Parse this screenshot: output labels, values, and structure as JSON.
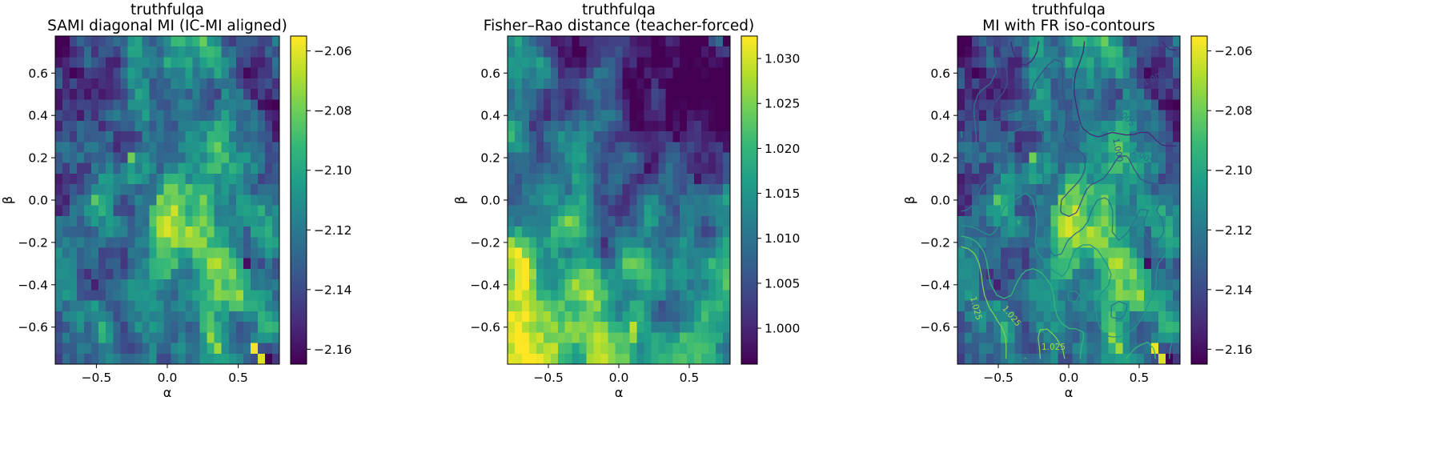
{
  "chart_data": [
    {
      "type": "heatmap",
      "title": "truthfulqa",
      "subtitle": "SAMI diagonal MI (IC-MI aligned)",
      "xlabel": "α",
      "ylabel": "β",
      "xlim": [
        -0.79,
        0.79
      ],
      "ylim": [
        -0.775,
        0.775
      ],
      "x_ticks": [
        "−0.5",
        "0.0",
        "0.5"
      ],
      "y_ticks": [
        "0.6",
        "0.4",
        "0.2",
        "0.0",
        "−0.2",
        "−0.4",
        "−0.6"
      ],
      "grid": "31 x 31",
      "colormap": "viridis",
      "colorbar_range": [
        -2.165,
        -2.055
      ],
      "colorbar_ticks": [
        "−2.06",
        "−2.08",
        "−2.10",
        "−2.12",
        "−2.14",
        "−2.16"
      ],
      "field": "mi"
    },
    {
      "type": "heatmap",
      "title": "truthfulqa",
      "subtitle": "Fisher–Rao distance (teacher-forced)",
      "xlabel": "α",
      "ylabel": "β",
      "xlim": [
        -0.79,
        0.79
      ],
      "ylim": [
        -0.775,
        0.775
      ],
      "x_ticks": [
        "−0.5",
        "0.0",
        "0.5"
      ],
      "y_ticks": [
        "0.6",
        "0.4",
        "0.2",
        "0.0",
        "−0.2",
        "−0.4",
        "−0.6"
      ],
      "grid": "31 x 31",
      "colormap": "viridis",
      "colorbar_range": [
        0.996,
        1.0325
      ],
      "colorbar_ticks": [
        "1.030",
        "1.025",
        "1.020",
        "1.015",
        "1.010",
        "1.005",
        "1.000"
      ],
      "field": "fr"
    },
    {
      "type": "heatmap",
      "title": "truthfulqa",
      "subtitle": "MI with FR iso-contours",
      "xlabel": "α",
      "ylabel": "β",
      "xlim": [
        -0.79,
        0.79
      ],
      "ylim": [
        -0.775,
        0.775
      ],
      "x_ticks": [
        "−0.5",
        "0.0",
        "0.5"
      ],
      "y_ticks": [
        "0.6",
        "0.4",
        "0.2",
        "0.0",
        "−0.2",
        "−0.4",
        "−0.6"
      ],
      "grid": "31 x 31",
      "colormap": "viridis",
      "colorbar_range": [
        -2.165,
        -2.055
      ],
      "colorbar_ticks": [
        "−2.06",
        "−2.08",
        "−2.10",
        "−2.12",
        "−2.14",
        "−2.16"
      ],
      "field": "mi",
      "contour_levels": [
        1.0,
        1.005,
        1.01,
        1.015,
        1.02,
        1.025
      ],
      "contour_labels": [
        "1.000",
        "1.005",
        "1.010",
        "1.005",
        "1.000",
        "1.005",
        "1.025",
        "1.025",
        "1.025"
      ]
    }
  ]
}
